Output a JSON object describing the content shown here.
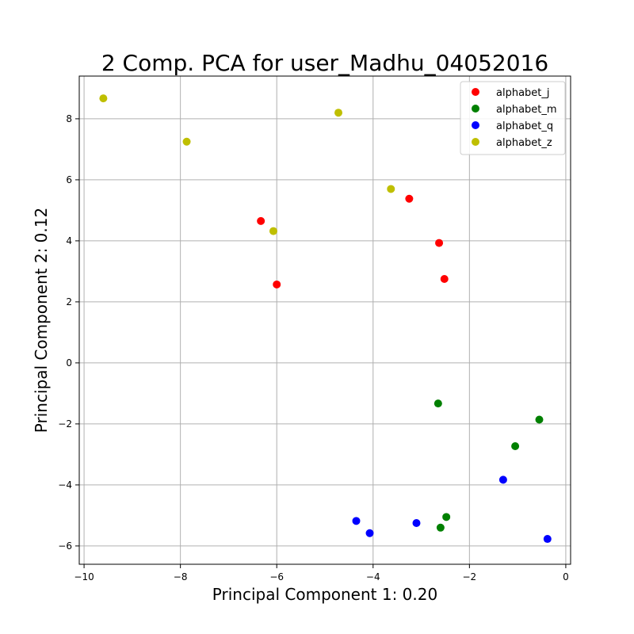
{
  "chart_data": {
    "type": "scatter",
    "title": "2 Comp. PCA for user_Madhu_04052016",
    "xlabel": "Principal Component 1: 0.20",
    "ylabel": "Principal Component 2: 0.12",
    "xlim": [
      -10.1,
      0.1
    ],
    "ylim": [
      -6.6,
      9.4
    ],
    "xticks": [
      -10,
      -8,
      -6,
      -4,
      -2,
      0
    ],
    "yticks": [
      -6,
      -4,
      -2,
      0,
      2,
      4,
      6,
      8
    ],
    "grid": true,
    "legend_position": "top-right",
    "series": [
      {
        "name": "alphabet_j",
        "color": "#ff0000",
        "points": [
          [
            -6.33,
            4.65
          ],
          [
            -6.0,
            2.57
          ],
          [
            -3.25,
            5.38
          ],
          [
            -2.63,
            3.93
          ],
          [
            -2.52,
            2.75
          ]
        ]
      },
      {
        "name": "alphabet_m",
        "color": "#008000",
        "points": [
          [
            -2.65,
            -1.33
          ],
          [
            -2.6,
            -5.4
          ],
          [
            -2.48,
            -5.05
          ],
          [
            -1.05,
            -2.73
          ],
          [
            -0.55,
            -1.86
          ]
        ]
      },
      {
        "name": "alphabet_q",
        "color": "#0000ff",
        "points": [
          [
            -4.35,
            -5.18
          ],
          [
            -4.07,
            -5.58
          ],
          [
            -3.1,
            -5.25
          ],
          [
            -1.3,
            -3.83
          ],
          [
            -0.38,
            -5.77
          ]
        ]
      },
      {
        "name": "alphabet_z",
        "color": "#bfbf00",
        "points": [
          [
            -9.6,
            8.67
          ],
          [
            -7.87,
            7.25
          ],
          [
            -6.07,
            4.32
          ],
          [
            -4.72,
            8.2
          ],
          [
            -3.63,
            5.7
          ]
        ]
      }
    ]
  }
}
